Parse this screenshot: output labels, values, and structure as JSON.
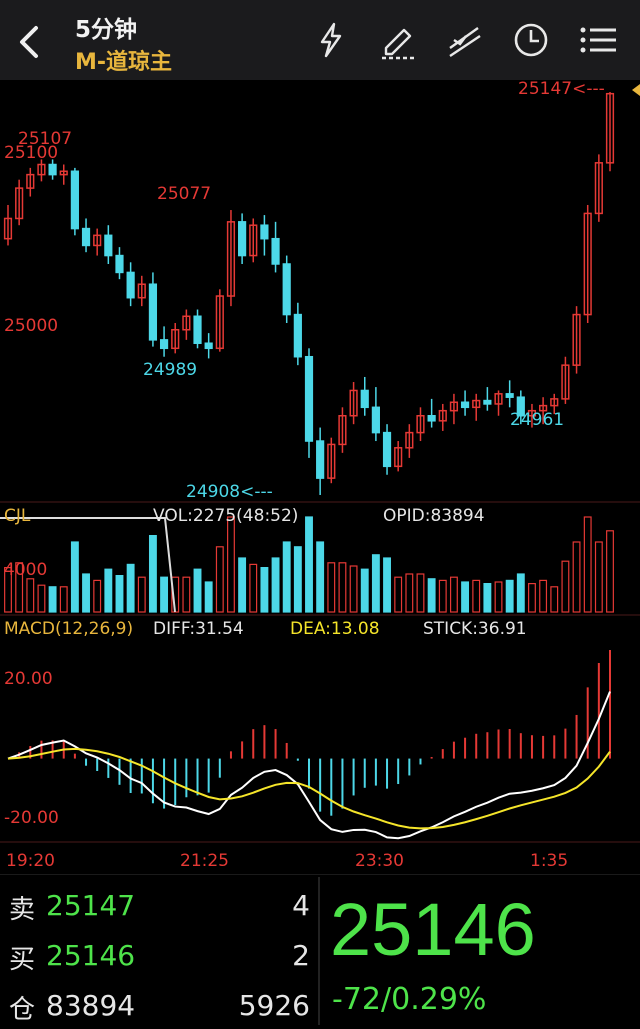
{
  "header": {
    "period": "5分钟",
    "contract": "M-道琼主",
    "icons": [
      "back-icon",
      "lightning-icon",
      "draw-pen-icon",
      "drawing-lines-icon",
      "clock-icon",
      "menu-list-icon"
    ]
  },
  "price_chart": {
    "level_labels": [
      "25100",
      "25000"
    ],
    "annotations": {
      "high_left": "25107",
      "high_mid": "25077",
      "low_left": "24989",
      "low_main": "24908<---",
      "low_right": "24961",
      "high_right": "25147<---"
    }
  },
  "volume_panel": {
    "indicator": "CJL",
    "vol_text": "VOL:2275(48:52)",
    "opid_text": "OPID:83894",
    "axis_label": "4000"
  },
  "macd_panel": {
    "name": "MACD(12,26,9)",
    "diff": "DIFF:31.54",
    "dea": "DEA:13.08",
    "stick": "STICK:36.91",
    "axis_labels": [
      "20.00",
      "-20.00"
    ]
  },
  "time_axis": [
    "19:20",
    "21:25",
    "23:30",
    "1:35"
  ],
  "quote": {
    "sell_label": "卖",
    "sell_price": "25147",
    "sell_qty": "4",
    "buy_label": "买",
    "buy_price": "25146",
    "buy_qty": "2",
    "oi_label": "仓",
    "oi_value": "83894",
    "oi_right": "5926",
    "last_price": "25146",
    "change": "-72/0.29%"
  },
  "colors": {
    "up": "#e53935",
    "down": "#4dd8e8",
    "diff_line": "#ffffff",
    "dea_line": "#f5e52a",
    "accent": "#e8b63d",
    "quote_green": "#4ee34a"
  },
  "chart_data": {
    "type": "candlestick",
    "price_range": [
      24908,
      25147
    ],
    "candles_ohlc": [
      [
        25060,
        25080,
        25056,
        25072
      ],
      [
        25072,
        25095,
        25068,
        25090
      ],
      [
        25090,
        25102,
        25085,
        25098
      ],
      [
        25098,
        25107,
        25094,
        25104
      ],
      [
        25104,
        25107,
        25095,
        25098
      ],
      [
        25098,
        25104,
        25092,
        25100
      ],
      [
        25100,
        25102,
        25062,
        25066
      ],
      [
        25066,
        25072,
        25052,
        25056
      ],
      [
        25056,
        25066,
        25050,
        25062
      ],
      [
        25062,
        25068,
        25045,
        25050
      ],
      [
        25050,
        25055,
        25036,
        25040
      ],
      [
        25040,
        25046,
        25020,
        25025
      ],
      [
        25025,
        25038,
        25020,
        25033
      ],
      [
        25033,
        25040,
        24996,
        25000
      ],
      [
        25000,
        25008,
        24990,
        24995
      ],
      [
        24995,
        25010,
        24992,
        25006
      ],
      [
        25006,
        25018,
        25000,
        25014
      ],
      [
        25014,
        25018,
        24995,
        24998
      ],
      [
        24998,
        25004,
        24989,
        24995
      ],
      [
        24995,
        25030,
        24993,
        25026
      ],
      [
        25026,
        25077,
        25020,
        25070
      ],
      [
        25070,
        25075,
        25045,
        25050
      ],
      [
        25050,
        25072,
        25046,
        25068
      ],
      [
        25068,
        25074,
        25050,
        25060
      ],
      [
        25060,
        25070,
        25040,
        25045
      ],
      [
        25045,
        25050,
        25010,
        25015
      ],
      [
        25015,
        25022,
        24985,
        24990
      ],
      [
        24990,
        24995,
        24930,
        24940
      ],
      [
        24940,
        24948,
        24908,
        24918
      ],
      [
        24918,
        24942,
        24915,
        24938
      ],
      [
        24938,
        24960,
        24933,
        24955
      ],
      [
        24955,
        24975,
        24950,
        24970
      ],
      [
        24970,
        24978,
        24955,
        24960
      ],
      [
        24960,
        24972,
        24940,
        24945
      ],
      [
        24945,
        24950,
        24920,
        24925
      ],
      [
        24925,
        24940,
        24922,
        24936
      ],
      [
        24936,
        24950,
        24930,
        24945
      ],
      [
        24945,
        24960,
        24940,
        24955
      ],
      [
        24955,
        24965,
        24948,
        24952
      ],
      [
        24952,
        24962,
        24946,
        24958
      ],
      [
        24958,
        24968,
        24950,
        24963
      ],
      [
        24963,
        24970,
        24955,
        24960
      ],
      [
        24960,
        24968,
        24952,
        24964
      ],
      [
        24964,
        24972,
        24958,
        24962
      ],
      [
        24962,
        24970,
        24955,
        24968
      ],
      [
        24968,
        24976,
        24960,
        24966
      ],
      [
        24966,
        24970,
        24950,
        24955
      ],
      [
        24955,
        24962,
        24948,
        24958
      ],
      [
        24958,
        24966,
        24950,
        24961
      ],
      [
        24961,
        24968,
        24956,
        24965
      ],
      [
        24965,
        24990,
        24962,
        24985
      ],
      [
        24985,
        25020,
        24980,
        25015
      ],
      [
        25015,
        25080,
        25010,
        25075
      ],
      [
        25075,
        25110,
        25070,
        25105
      ],
      [
        25105,
        25147,
        25100,
        25146
      ]
    ],
    "macd": {
      "diff_last": 31.54,
      "dea_last": 13.08,
      "stick_last": 36.91,
      "y_range": [
        -30,
        40
      ]
    }
  }
}
